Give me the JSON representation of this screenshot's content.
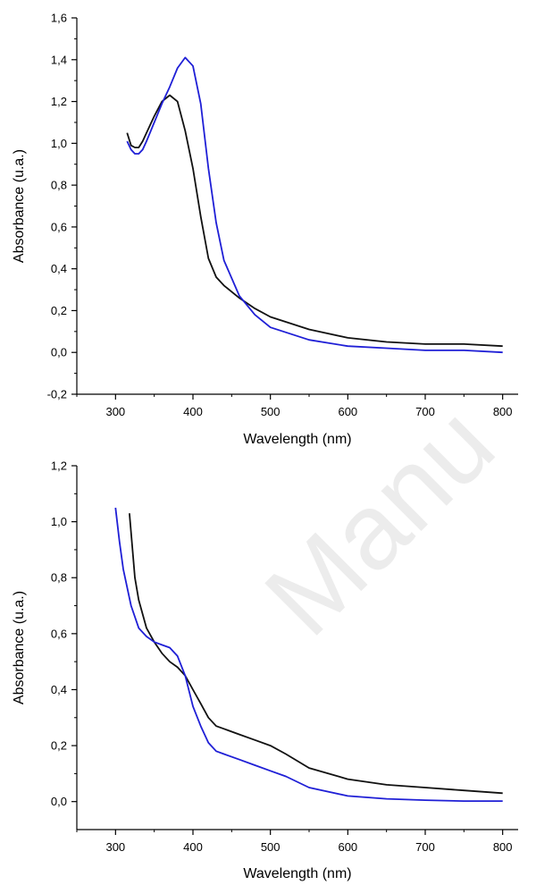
{
  "watermark": "Manu",
  "colors": {
    "blue": "#1f1fd6",
    "black": "#111111",
    "axis": "#000000"
  },
  "chart_data": [
    {
      "type": "line",
      "xlabel": "Wavelength (nm)",
      "ylabel": "Absorbance (u.a.)",
      "xlim": [
        250,
        820
      ],
      "ylim": [
        -0.2,
        1.6
      ],
      "xticks": [
        300,
        400,
        500,
        600,
        700,
        800
      ],
      "xticklabels": [
        "300",
        "400",
        "500",
        "600",
        "700",
        "800"
      ],
      "yticks": [
        -0.2,
        0.0,
        0.2,
        0.4,
        0.6,
        0.8,
        1.0,
        1.2,
        1.4,
        1.6
      ],
      "yticklabels": [
        "-0,2",
        "0,0",
        "0,2",
        "0,4",
        "0,6",
        "0,8",
        "1,0",
        "1,2",
        "1,4",
        "1,6"
      ],
      "series": [
        {
          "color": "#111111",
          "x": [
            315,
            320,
            325,
            330,
            335,
            340,
            350,
            360,
            370,
            380,
            390,
            400,
            410,
            420,
            430,
            440,
            460,
            480,
            500,
            550,
            600,
            650,
            700,
            750,
            800
          ],
          "y": [
            1.05,
            0.99,
            0.98,
            0.98,
            1.01,
            1.05,
            1.13,
            1.2,
            1.23,
            1.2,
            1.06,
            0.88,
            0.65,
            0.45,
            0.36,
            0.32,
            0.26,
            0.21,
            0.17,
            0.11,
            0.07,
            0.05,
            0.04,
            0.04,
            0.03
          ]
        },
        {
          "color": "#1f1fd6",
          "x": [
            315,
            320,
            325,
            330,
            335,
            340,
            350,
            360,
            370,
            380,
            390,
            400,
            410,
            420,
            430,
            440,
            460,
            480,
            500,
            550,
            600,
            650,
            700,
            750,
            800
          ],
          "y": [
            1.01,
            0.97,
            0.95,
            0.95,
            0.97,
            1.01,
            1.1,
            1.19,
            1.27,
            1.36,
            1.41,
            1.37,
            1.19,
            0.88,
            0.62,
            0.44,
            0.27,
            0.18,
            0.12,
            0.06,
            0.03,
            0.02,
            0.01,
            0.01,
            0.0
          ]
        }
      ]
    },
    {
      "type": "line",
      "xlabel": "Wavelength (nm)",
      "ylabel": "Absorbance (u.a.)",
      "xlim": [
        250,
        820
      ],
      "ylim": [
        -0.1,
        1.2
      ],
      "xticks": [
        300,
        400,
        500,
        600,
        700,
        800
      ],
      "xticklabels": [
        "300",
        "400",
        "500",
        "600",
        "700",
        "800"
      ],
      "yticks": [
        0.0,
        0.2,
        0.4,
        0.6,
        0.8,
        1.0,
        1.2
      ],
      "yticklabels": [
        "0,0",
        "0,2",
        "0,4",
        "0,6",
        "0,8",
        "1,0",
        "1,2"
      ],
      "series": [
        {
          "color": "#111111",
          "x": [
            318,
            325,
            330,
            340,
            350,
            360,
            370,
            380,
            390,
            400,
            410,
            420,
            430,
            440,
            460,
            480,
            500,
            520,
            550,
            600,
            650,
            700,
            750,
            800
          ],
          "y": [
            1.03,
            0.8,
            0.72,
            0.62,
            0.57,
            0.53,
            0.5,
            0.48,
            0.45,
            0.4,
            0.35,
            0.3,
            0.27,
            0.26,
            0.24,
            0.22,
            0.2,
            0.17,
            0.12,
            0.08,
            0.06,
            0.05,
            0.04,
            0.03
          ]
        },
        {
          "color": "#1f1fd6",
          "x": [
            300,
            305,
            310,
            320,
            330,
            340,
            350,
            360,
            370,
            380,
            390,
            400,
            410,
            420,
            430,
            440,
            460,
            480,
            500,
            520,
            550,
            600,
            650,
            700,
            750,
            800
          ],
          "y": [
            1.05,
            0.93,
            0.83,
            0.7,
            0.62,
            0.59,
            0.57,
            0.56,
            0.55,
            0.52,
            0.45,
            0.34,
            0.27,
            0.21,
            0.18,
            0.17,
            0.15,
            0.13,
            0.11,
            0.09,
            0.05,
            0.02,
            0.01,
            0.005,
            0.002,
            0.002
          ]
        }
      ]
    }
  ]
}
